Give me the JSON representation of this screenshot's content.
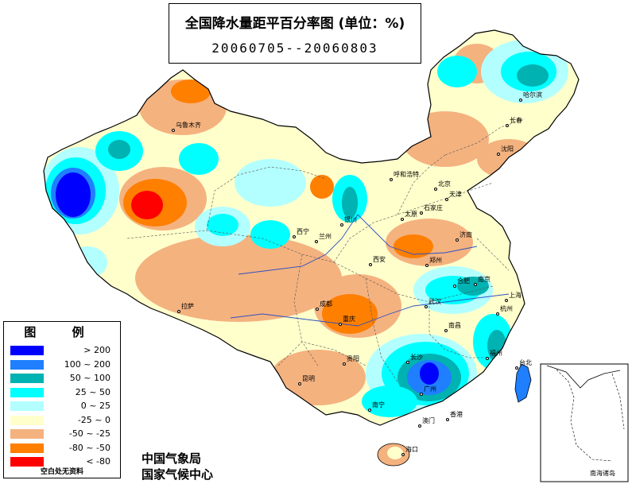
{
  "title": {
    "main": "全国降水量距平百分率图 (单位：%)",
    "date_range": "20060705--20060803"
  },
  "legend": {
    "title": "图 例",
    "items": [
      {
        "label": "> 200",
        "color": "#0000ff"
      },
      {
        "label": "100 ~ 200",
        "color": "#1f7fff"
      },
      {
        "label": "50 ~ 100",
        "color": "#00b2b2"
      },
      {
        "label": "25 ~ 50",
        "color": "#00ffff"
      },
      {
        "label": "0 ~ 25",
        "color": "#b3ffff"
      },
      {
        "label": "-25 ~ 0",
        "color": "#ffffcc"
      },
      {
        "label": "-50 ~ -25",
        "color": "#f4b27f"
      },
      {
        "label": "-80 ~ -50",
        "color": "#ff7f00"
      },
      {
        "label": "< -80",
        "color": "#ff0000"
      }
    ],
    "note": "空白处无资料"
  },
  "agency": {
    "line1": "中国气象局",
    "line2": "国家气候中心"
  },
  "inset": {
    "label": "南海诸岛"
  },
  "cities": [
    {
      "name": "哈尔滨",
      "key": "harbin"
    },
    {
      "name": "长春",
      "key": "changchun"
    },
    {
      "name": "沈阳",
      "key": "shenyang"
    },
    {
      "name": "呼和浩特",
      "key": "hohhot"
    },
    {
      "name": "北京",
      "key": "beijing"
    },
    {
      "name": "天津",
      "key": "tianjin"
    },
    {
      "name": "太原",
      "key": "taiyuan"
    },
    {
      "name": "石家庄",
      "key": "shijiazhuang"
    },
    {
      "name": "济南",
      "key": "jinan"
    },
    {
      "name": "郑州",
      "key": "zhengzhou"
    },
    {
      "name": "西安",
      "key": "xian"
    },
    {
      "name": "银川",
      "key": "yinchuan"
    },
    {
      "name": "兰州",
      "key": "lanzhou"
    },
    {
      "name": "西宁",
      "key": "xining"
    },
    {
      "name": "乌鲁木齐",
      "key": "urumqi"
    },
    {
      "name": "拉萨",
      "key": "lhasa"
    },
    {
      "name": "成都",
      "key": "chengdu"
    },
    {
      "name": "重庆",
      "key": "chongqing"
    },
    {
      "name": "贵阳",
      "key": "guiyang"
    },
    {
      "name": "昆明",
      "key": "kunming"
    },
    {
      "name": "南宁",
      "key": "nanning"
    },
    {
      "name": "广州",
      "key": "guangzhou"
    },
    {
      "name": "香港",
      "key": "hongkong"
    },
    {
      "name": "澳门",
      "key": "macau"
    },
    {
      "name": "海口",
      "key": "haikou"
    },
    {
      "name": "长沙",
      "key": "changsha"
    },
    {
      "name": "武汉",
      "key": "wuhan"
    },
    {
      "name": "南昌",
      "key": "nanchang"
    },
    {
      "name": "合肥",
      "key": "hefei"
    },
    {
      "name": "南京",
      "key": "nanjing"
    },
    {
      "name": "上海",
      "key": "shanghai"
    },
    {
      "name": "杭州",
      "key": "hangzhou"
    },
    {
      "name": "福州",
      "key": "fuzhou"
    },
    {
      "name": "台北",
      "key": "taipei"
    }
  ]
}
